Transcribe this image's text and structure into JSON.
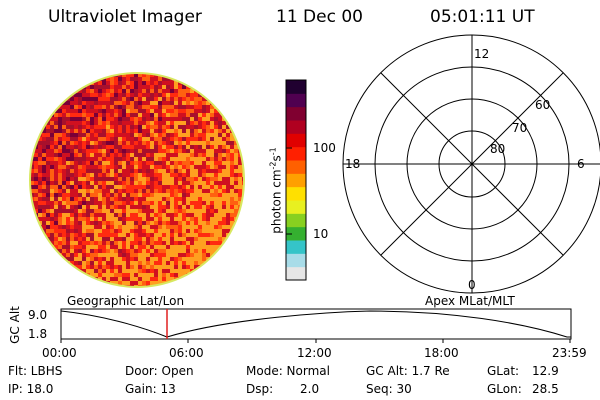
{
  "header": {
    "title": "Ultraviolet Imager",
    "date": "11 Dec 00",
    "time": "05:01:11 UT"
  },
  "colorbar": {
    "unit_label": "photon cm",
    "unit_exp1": "-2",
    "unit_s": "s",
    "unit_exp2": "-1",
    "tick_100": "100",
    "tick_10": "10",
    "colors": [
      "#e6e6e6",
      "#a8dce8",
      "#35c4c8",
      "#35b030",
      "#88d020",
      "#e8f020",
      "#ffe000",
      "#ffa000",
      "#ff6000",
      "#ff2000",
      "#e00000",
      "#b00020",
      "#800030",
      "#500050",
      "#200030"
    ]
  },
  "polar": {
    "mlt_top": "12",
    "mlt_left": "18",
    "mlt_right": "6",
    "mlt_bottom": "0",
    "lat_60": "60",
    "lat_70": "70",
    "lat_80": "80"
  },
  "timeline": {
    "left_title": "Geographic Lat/Lon",
    "right_title": "Apex MLat/MLT",
    "yaxis_label": "GC Alt",
    "y_top": "9.0",
    "y_bottom": "1.8",
    "x_ticks": [
      "00:00",
      "06:00",
      "12:00",
      "18:00",
      "23:59"
    ],
    "marker_color": "#e02020"
  },
  "info": {
    "filter_label": "Flt: LBHS",
    "ip_label": "IP: 18.0",
    "door_label": "Door: Open",
    "gain_label": "Gain: 13",
    "mode_label": "Mode: Normal",
    "dsp_label": "Dsp:",
    "dsp_value": "2.0",
    "gcalt_label": "GC Alt: 1.7 Re",
    "seq_label": "Seq: 30",
    "glat_label": "GLat:",
    "glat_value": "12.9",
    "glon_label": "GLon:",
    "glon_value": "28.5"
  }
}
